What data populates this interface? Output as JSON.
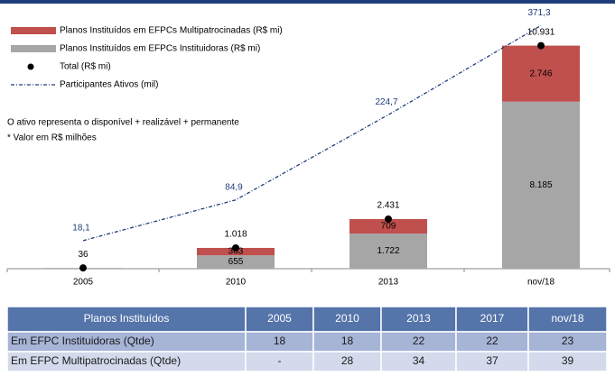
{
  "chart_data": {
    "type": "bar",
    "categories": [
      "2005",
      "2010",
      "2013",
      "nov/18"
    ],
    "ylim": [
      0,
      11400
    ],
    "y2lim": [
      -28,
      354
    ],
    "series": [
      {
        "name": "Planos Instituídos em EFPCs Instituidoras (R$ mi)",
        "type": "bar",
        "color": "#a6a6a6",
        "values": [
          36,
          655,
          1722,
          8185
        ],
        "value_labels": [
          null,
          "655",
          "1.722",
          "8.185"
        ]
      },
      {
        "name": "Planos Instituídos em EFPCs Multipatrocinadas (R$ mi)",
        "type": "bar",
        "color": "#c0504d",
        "values": [
          0,
          363,
          709,
          2746
        ],
        "value_labels": [
          null,
          "363",
          "709",
          "2.746"
        ]
      },
      {
        "name": "Total (R$ mi)",
        "type": "scatter",
        "color": "#000000",
        "values": [
          36,
          1018,
          2431,
          10931
        ],
        "value_labels": [
          "36",
          "1.018",
          "2.431",
          "10.931"
        ]
      },
      {
        "name": "Participantes Ativos (mil)",
        "type": "line",
        "axis": "y2",
        "color": "#1f3d7a",
        "values": [
          18.1,
          84.9,
          224.7,
          371.3
        ],
        "value_labels": [
          "18,1",
          "84,9",
          "224,7",
          "371,3"
        ]
      }
    ],
    "annotations": [
      "O ativo representa o disponível + realizável + permanente",
      "* Valor em R$ milhões"
    ]
  },
  "table": {
    "header": [
      "Planos Instituídos",
      "2005",
      "2010",
      "2013",
      "2017",
      "nov/18"
    ],
    "rows": [
      [
        "Em EFPC Instituidoras (Qtde)",
        "18",
        "18",
        "22",
        "22",
        "23"
      ],
      [
        "Em EFPC Multipatrocinadas (Qtde)",
        "-",
        "28",
        "34",
        "37",
        "39"
      ]
    ]
  }
}
